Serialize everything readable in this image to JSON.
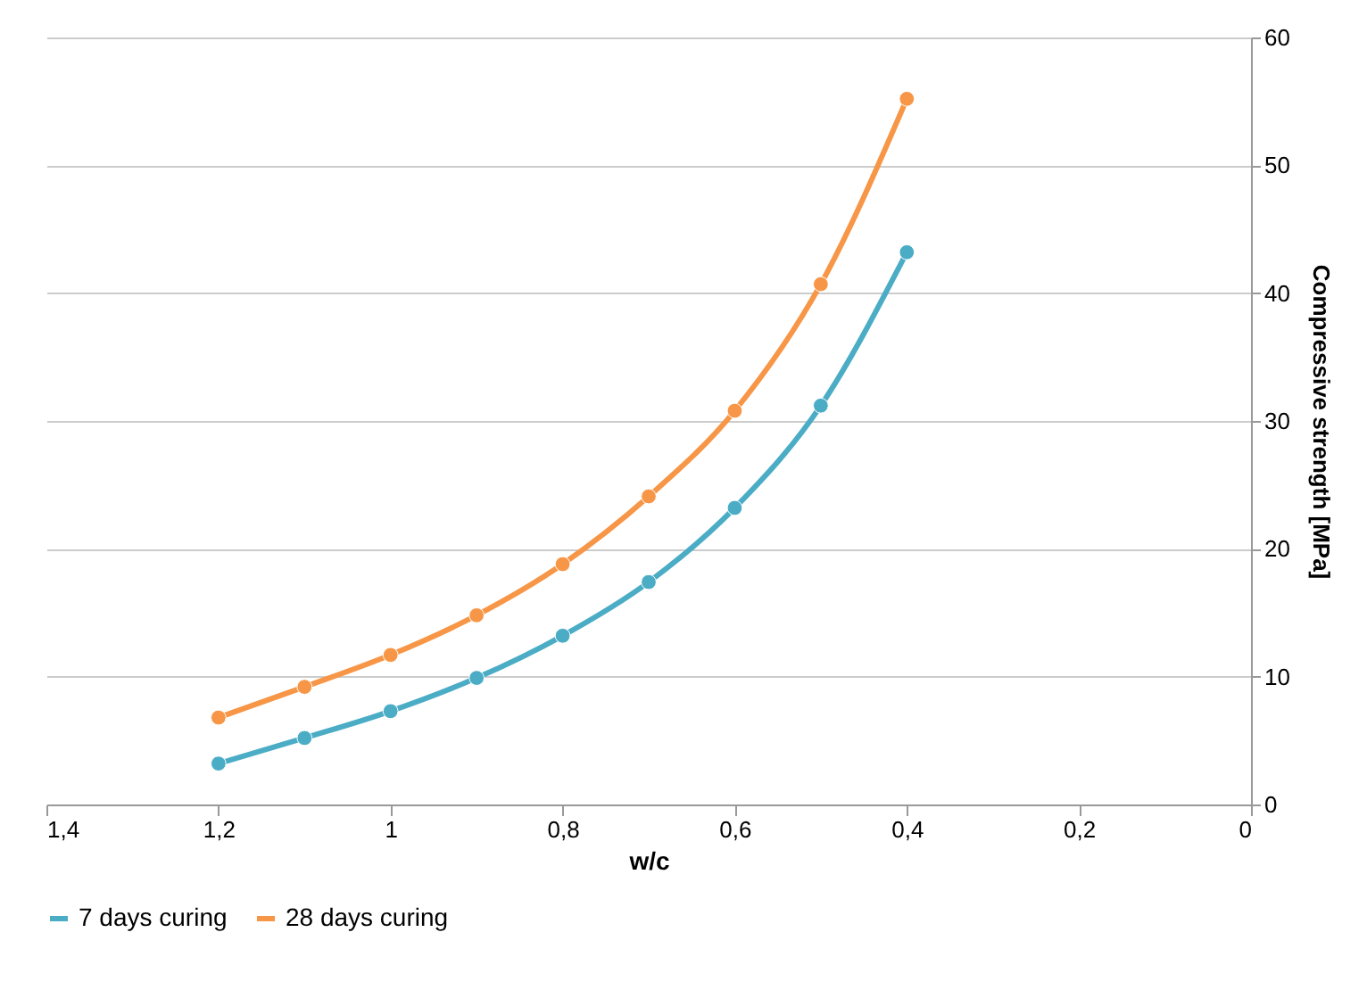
{
  "chart_data": {
    "type": "line",
    "xlabel": "w/c",
    "ylabel": "Compressive strength [MPa]",
    "x": [
      1.2,
      1.1,
      1.0,
      0.9,
      0.8,
      0.7,
      0.6,
      0.5,
      0.4
    ],
    "xlim": [
      1.4,
      0
    ],
    "xticks": [
      {
        "value": 1.4,
        "label": "1,4"
      },
      {
        "value": 1.2,
        "label": "1,2"
      },
      {
        "value": 1,
        "label": "1"
      },
      {
        "value": 0.8,
        "label": "0,8"
      },
      {
        "value": 0.6,
        "label": "0,6"
      },
      {
        "value": 0.4,
        "label": "0,4"
      },
      {
        "value": 0.2,
        "label": "0,2"
      },
      {
        "value": 0,
        "label": "0"
      }
    ],
    "ylim": [
      0,
      60
    ],
    "yticks": [
      0,
      10,
      20,
      30,
      40,
      50,
      60
    ],
    "series": [
      {
        "name": "7 days curing",
        "color": "#4bacc6",
        "values": [
          3.2,
          5.2,
          7.3,
          9.9,
          13.2,
          17.4,
          23.2,
          31.2,
          43.2
        ]
      },
      {
        "name": "28 days curing",
        "color": "#f79646",
        "values": [
          6.8,
          9.2,
          11.7,
          14.8,
          18.8,
          24.1,
          30.8,
          40.7,
          55.2
        ]
      }
    ],
    "grid": "y",
    "legend": "bottom",
    "marker": "circle",
    "line_style": "solid"
  }
}
